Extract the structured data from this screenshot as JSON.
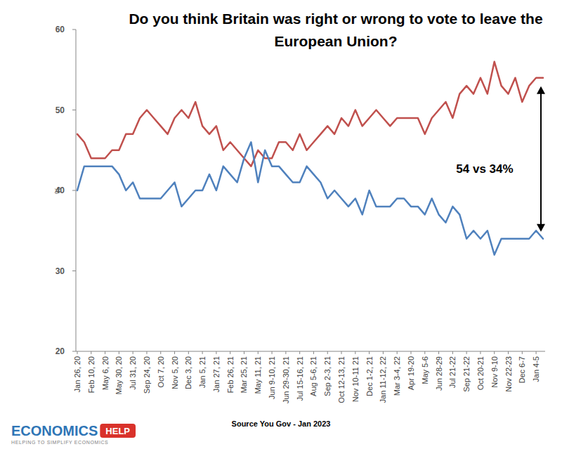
{
  "chart_data": {
    "type": "line",
    "title": "Do you think Britain was right or wrong to vote to leave the European Union?",
    "y_label": "%",
    "annotation": "54 vs 34%",
    "source": "Source You Gov -  Jan 2023",
    "logo": {
      "name": "ECONOMICS",
      "badge": "HELP",
      "tagline": "HELPING TO SIMPLIFY ECONOMICS"
    },
    "categories": [
      "Jan 26, 20",
      null,
      "Feb 10, 20",
      null,
      "May 6, 20",
      null,
      "May 30, 20",
      null,
      "Jul 31, 20",
      null,
      "Sep 24, 20",
      null,
      "Oct 7, 20",
      null,
      "Nov 5, 20",
      null,
      "Dec 3, 20",
      null,
      "Jan 5, 21",
      null,
      "Jan 27, 21",
      null,
      "Feb 26, 21",
      null,
      "Mar 25, 21",
      null,
      "May 11, 21",
      null,
      "Jun 9-10, 21",
      null,
      "Jun 29-30, 21",
      null,
      "Jul 15-16, 21",
      null,
      "Aug 5-6, 21",
      null,
      "Sep 2-3, 21",
      null,
      "Oct 12-13, 21",
      null,
      "Nov 10-11 21",
      null,
      "Dec 1-2, 21",
      null,
      "Jan 11-12, 22",
      null,
      "Mar 3-4, 22",
      null,
      "Apr 19-20",
      null,
      "May 5-6",
      null,
      "Jun 28-29",
      null,
      "Jul 21-22",
      null,
      "Sep 21-22",
      null,
      "Oct 20-21",
      null,
      "Nov 9-10",
      null,
      "Nov 22-23",
      null,
      "Dec 6-7",
      null,
      "Jan 4-5",
      null
    ],
    "series": [
      {
        "color": "#c0504d",
        "values": [
          47,
          46,
          44,
          44,
          44,
          45,
          45,
          47,
          47,
          49,
          50,
          49,
          48,
          47,
          49,
          50,
          49,
          51,
          48,
          47,
          48,
          45,
          46,
          45,
          44,
          43,
          45,
          44,
          44,
          46,
          46,
          45,
          47,
          45,
          46,
          47,
          48,
          47,
          49,
          48,
          50,
          48,
          49,
          50,
          49,
          48,
          49,
          49,
          49,
          49,
          47,
          49,
          50,
          51,
          49,
          52,
          53,
          52,
          54,
          52,
          56,
          53,
          52,
          54,
          51,
          53,
          54,
          54
        ]
      },
      {
        "color": "#4f81bd",
        "values": [
          40,
          43,
          43,
          43,
          43,
          43,
          42,
          40,
          41,
          39,
          39,
          39,
          39,
          40,
          41,
          38,
          39,
          40,
          40,
          42,
          40,
          43,
          42,
          41,
          44,
          46,
          41,
          45,
          43,
          43,
          42,
          41,
          41,
          43,
          42,
          41,
          39,
          40,
          39,
          38,
          39,
          37,
          40,
          38,
          38,
          38,
          39,
          39,
          38,
          38,
          37,
          39,
          37,
          36,
          38,
          37,
          34,
          35,
          34,
          35,
          32,
          34,
          34,
          34,
          34,
          34,
          35,
          34
        ]
      }
    ],
    "ylim": [
      20,
      60
    ],
    "yticks": [
      20,
      30,
      40,
      50,
      60
    ],
    "grid": false
  }
}
